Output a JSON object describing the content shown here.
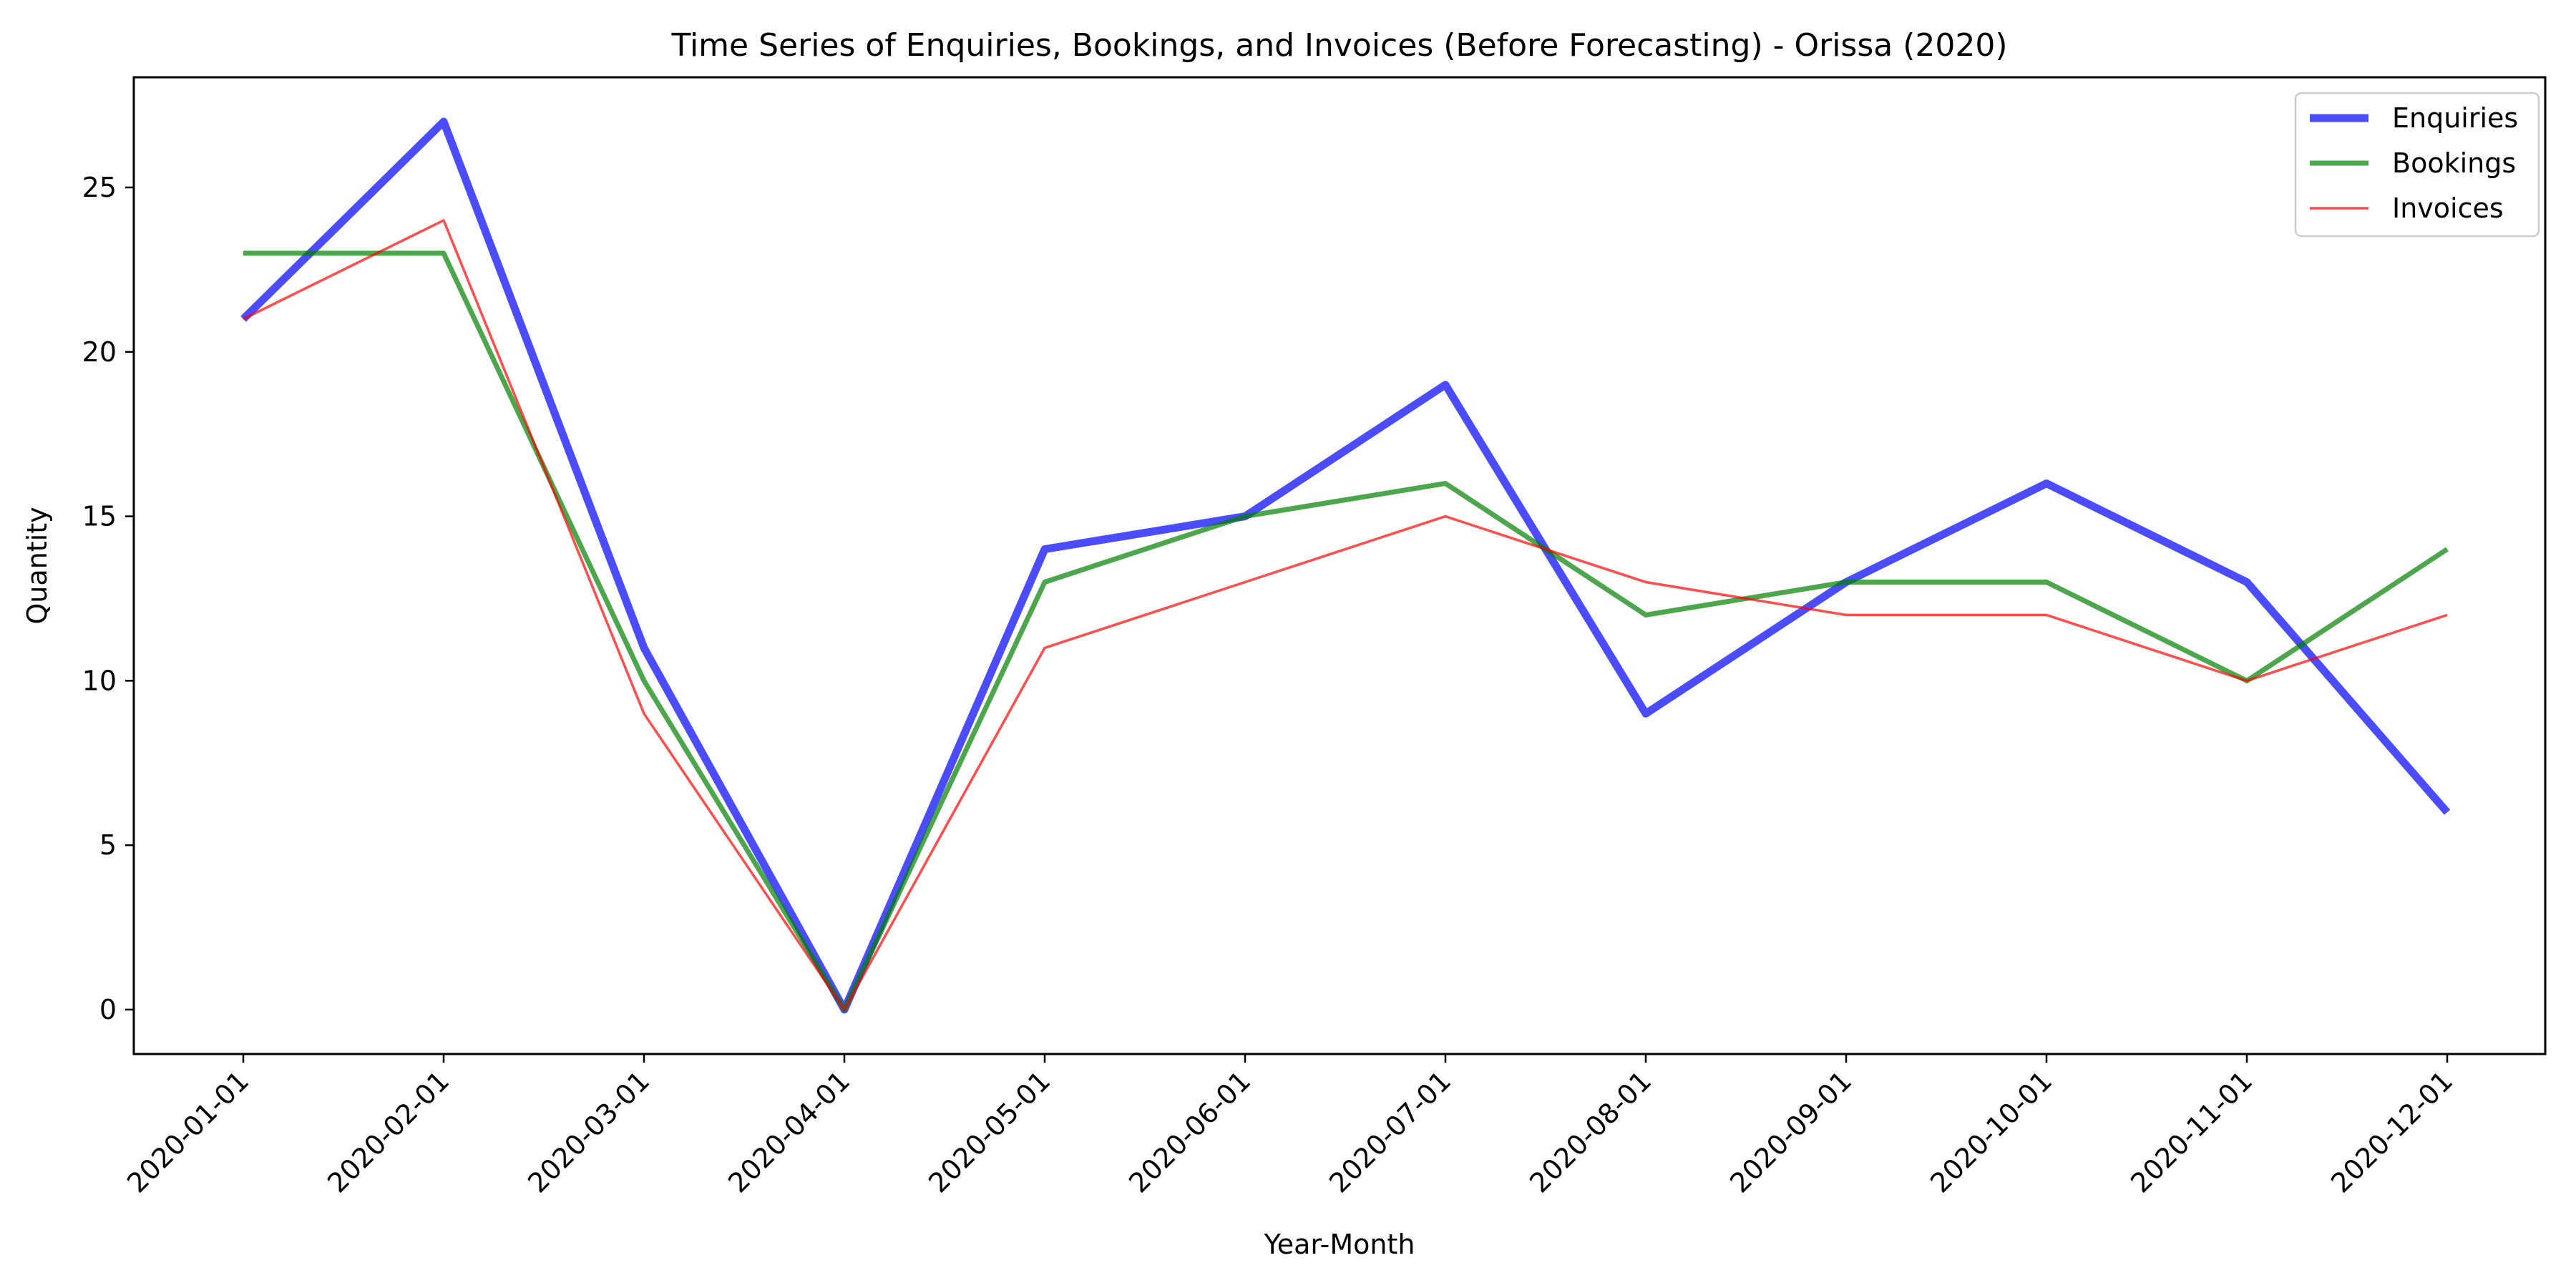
{
  "chart_data": {
    "type": "line",
    "title": "Time Series of Enquiries, Bookings, and Invoices (Before Forecasting) - Orissa (2020)",
    "xlabel": "Year-Month",
    "ylabel": "Quantity",
    "categories": [
      "2020-01-01",
      "2020-02-01",
      "2020-03-01",
      "2020-04-01",
      "2020-05-01",
      "2020-06-01",
      "2020-07-01",
      "2020-08-01",
      "2020-09-01",
      "2020-10-01",
      "2020-11-01",
      "2020-12-01"
    ],
    "ylim": [
      -1.35,
      28.35
    ],
    "yticks": [
      0,
      5,
      10,
      15,
      20,
      25
    ],
    "grid": false,
    "legend_position": "top-right",
    "series": [
      {
        "name": "Enquiries",
        "color": "#0000ff",
        "values": [
          21,
          27,
          11,
          0,
          14,
          15,
          19,
          9,
          13,
          16,
          13,
          6
        ]
      },
      {
        "name": "Bookings",
        "color": "#008000",
        "values": [
          23,
          23,
          10,
          0,
          13,
          15,
          16,
          12,
          13,
          13,
          10,
          14
        ]
      },
      {
        "name": "Invoices",
        "color": "#ff0000",
        "values": [
          21,
          24,
          9,
          0,
          11,
          13,
          15,
          13,
          12,
          12,
          10,
          12
        ]
      }
    ]
  }
}
